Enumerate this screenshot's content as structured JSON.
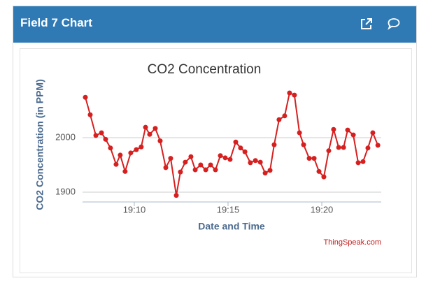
{
  "header": {
    "title": "Field 7 Chart"
  },
  "chart_data": {
    "type": "line",
    "title": "CO2 Concentration",
    "x_label": "Date and Time",
    "y_label": "CO2 Concentration (in PPM)",
    "credit": "ThingSpeak.com",
    "x": [
      7.39,
      7.65,
      7.95,
      8.25,
      8.47,
      8.73,
      9.03,
      9.25,
      9.51,
      9.81,
      10.11,
      10.37,
      10.6,
      10.82,
      11.12,
      11.38,
      11.68,
      11.94,
      12.24,
      12.46,
      12.72,
      13.02,
      13.25,
      13.54,
      13.81,
      14.07,
      14.33,
      14.59,
      14.85,
      15.11,
      15.41,
      15.67,
      15.9,
      16.19,
      16.46,
      16.72,
      16.98,
      17.24,
      17.46,
      17.72,
      18.02,
      18.28,
      18.54,
      18.81,
      19.03,
      19.33,
      19.59,
      19.85,
      20.11,
      20.37,
      20.63,
      20.9,
      21.16,
      21.38,
      21.68,
      21.94,
      22.2,
      22.46,
      22.72,
      22.99
    ],
    "series": [
      {
        "color": "#d62020",
        "values": [
          2074,
          2042,
          2004,
          2009,
          1997,
          1981,
          1951,
          1968,
          1938,
          1972,
          1978,
          1983,
          2019,
          2006,
          2017,
          1994,
          1945,
          1962,
          1894,
          1937,
          1955,
          1965,
          1941,
          1950,
          1941,
          1950,
          1941,
          1967,
          1963,
          1960,
          1992,
          1981,
          1974,
          1954,
          1958,
          1955,
          1935,
          1940,
          1987,
          2033,
          2040,
          2082,
          2078,
          2009,
          1987,
          1962,
          1962,
          1938,
          1928,
          1976,
          2015,
          1982,
          1982,
          2014,
          2005,
          1954,
          1956,
          1981,
          2009,
          1986
        ]
      }
    ],
    "xlim": [
      7.24,
      23.17
    ],
    "ylim": [
      1882,
      2100
    ],
    "xticks": [
      {
        "value": 10,
        "label": "19:10"
      },
      {
        "value": 15,
        "label": "19:15"
      },
      {
        "value": 20,
        "label": "19:20"
      }
    ],
    "yticks": [
      1900,
      2000
    ],
    "grid": true
  }
}
